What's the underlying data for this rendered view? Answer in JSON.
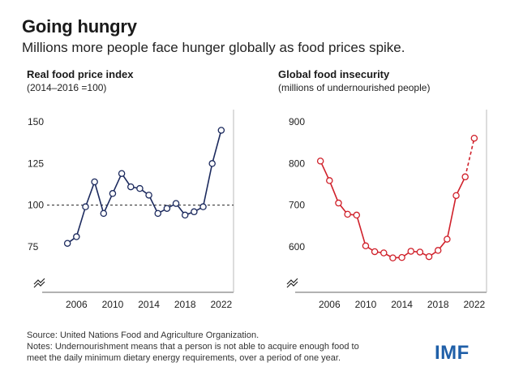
{
  "title": "Going hungry",
  "subtitle": "Millions more people face hunger globally as food prices spike.",
  "notes": {
    "source": "Source: United Nations Food and Agriculture Organization.",
    "note_line1": "Notes: Undernourishment means that a person is not able to acquire enough food to",
    "note_line2": "meet the daily minimum dietary energy requirements, over a period of one year."
  },
  "logo_text": "IMF",
  "colors": {
    "left_series": "#1c2a5e",
    "right_series": "#d0202a",
    "axis": "#555555"
  },
  "chart_data": [
    {
      "type": "line",
      "title": "Real food price index",
      "subtitle": "(2014–2016 =100)",
      "x": [
        2005,
        2006,
        2007,
        2008,
        2009,
        2010,
        2011,
        2012,
        2013,
        2014,
        2015,
        2016,
        2017,
        2018,
        2019,
        2020,
        2021,
        2022
      ],
      "series": [
        {
          "values": [
            77,
            81,
            99,
            114,
            95,
            107,
            119,
            111,
            110,
            106,
            95,
            98,
            101,
            94,
            96,
            99,
            125,
            145
          ]
        }
      ],
      "reference_line": {
        "y": 100,
        "style": "dashed"
      },
      "yticks": [
        75,
        100,
        125,
        150
      ],
      "xticks": [
        2006,
        2010,
        2014,
        2018,
        2022
      ],
      "ylim": [
        50,
        155
      ],
      "xlim": [
        2004,
        2023
      ],
      "axis_break_symbol": true,
      "grid": false
    },
    {
      "type": "line",
      "title": "Global food insecurity",
      "subtitle": "(millions of undernourished people)",
      "x": [
        2005,
        2006,
        2007,
        2008,
        2009,
        2010,
        2011,
        2012,
        2013,
        2014,
        2015,
        2016,
        2017,
        2018,
        2019,
        2020,
        2021,
        2022
      ],
      "series": [
        {
          "values": [
            806,
            759,
            705,
            678,
            676,
            602,
            588,
            585,
            573,
            574,
            589,
            587,
            576,
            591,
            618,
            723,
            768,
            861
          ],
          "dashed_last_segment": true
        }
      ],
      "yticks": [
        600,
        700,
        800,
        900
      ],
      "xticks": [
        2006,
        2010,
        2014,
        2018,
        2022
      ],
      "ylim": [
        500,
        920
      ],
      "xlim": [
        2004,
        2023
      ],
      "axis_break_symbol": true,
      "grid": false
    }
  ]
}
